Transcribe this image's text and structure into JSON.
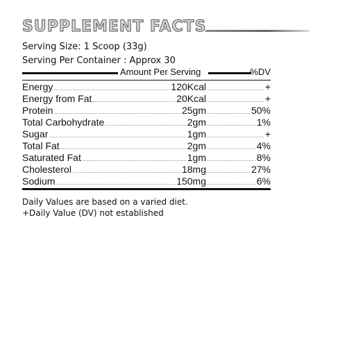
{
  "title": "SUPPLEMENT FACTS",
  "serving_size": "Serving Size: 1 Scoop (33g)",
  "serving_per_container": "Serving Per Container : Approx 30",
  "header": {
    "amount": "Amount Per Serving",
    "dv": "%DV"
  },
  "rows": [
    {
      "name": "Energy",
      "amount": "120Kcal",
      "dv": "+"
    },
    {
      "name": "Energy from Fat",
      "amount": "20Kcal",
      "dv": "+"
    },
    {
      "name": "Protein",
      "amount": "25gm",
      "dv": "50%"
    },
    {
      "name": "Total Carbohydrate",
      "amount": "2gm",
      "dv": "1%"
    },
    {
      "name": "Sugar",
      "amount": "1gm",
      "dv": "+"
    },
    {
      "name": "Total Fat",
      "amount": "2gm",
      "dv": "4%"
    },
    {
      "name": "Saturated Fat",
      "amount": "1gm",
      "dv": "8%"
    },
    {
      "name": "Cholesterol",
      "amount": "18mg",
      "dv": "27%"
    },
    {
      "name": "Sodium",
      "amount": "150mg",
      "dv": "6%"
    }
  ],
  "notes": [
    "Daily Values are based on a varied diet.",
    "+Daily Value (DV) not established"
  ]
}
